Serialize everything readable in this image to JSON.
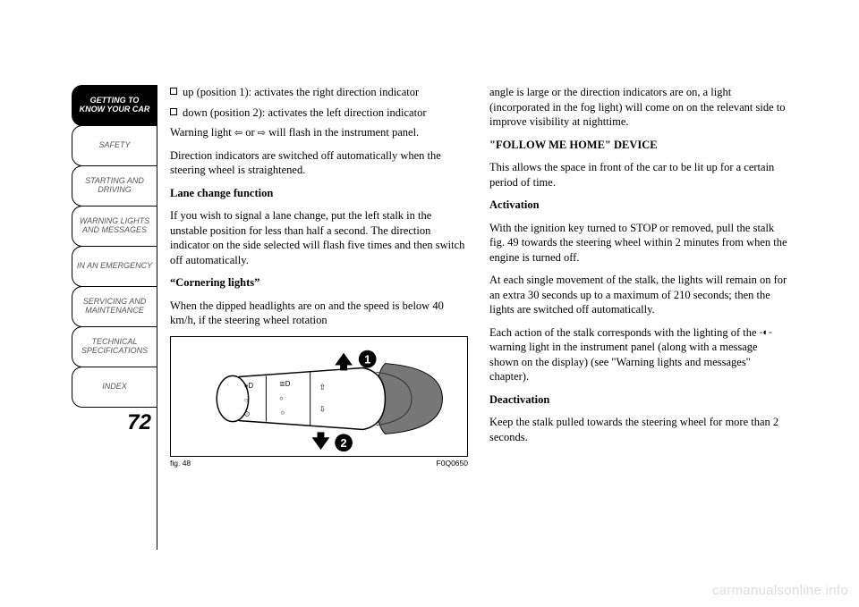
{
  "sidebar": {
    "tabs": [
      {
        "label": "GETTING TO\nKNOW YOUR CAR",
        "active": true
      },
      {
        "label": "SAFETY",
        "active": false
      },
      {
        "label": "STARTING AND\nDRIVING",
        "active": false
      },
      {
        "label": "WARNING LIGHTS\nAND MESSAGES",
        "active": false
      },
      {
        "label": "IN AN EMERGENCY",
        "active": false
      },
      {
        "label": "SERVICING AND\nMAINTENANCE",
        "active": false
      },
      {
        "label": "TECHNICAL\nSPECIFICATIONS",
        "active": false
      },
      {
        "label": "INDEX",
        "active": false
      }
    ]
  },
  "page_number": "72",
  "col1": {
    "bullet1": "up (position 1): activates the right direction indicator",
    "bullet2": "down (position 2): activates the left direction indicator",
    "p1a": "Warning light ",
    "p1b": " or ",
    "p1c": " will flash in the instrument panel.",
    "p2": "Direction indicators are switched off automatically when the steering wheel is straightened.",
    "h1": "Lane change function",
    "p3": "If you wish to signal a lane change, put the left stalk in the unstable position for less than half a second. The direction indicator on the side selected will flash five times and then switch off automatically.",
    "h2": "“Cornering lights”",
    "p4": "When the dipped headlights are on and the speed is below 40 km/h, if the steering wheel rotation",
    "fig_label": "fig. 48",
    "fig_code": "F0Q0650"
  },
  "col2": {
    "p1": "angle is large or the direction indicators are on, a light (incorporated in the fog light) will come on on the relevant side to improve visibility at nighttime.",
    "h1": "\"FOLLOW ME HOME\" DEVICE",
    "p2": "This allows the space in front of the car to be lit up for a certain period of time.",
    "h2": "Activation",
    "p3": "With the ignition key turned to STOP or removed, pull the stalk fig. 49 towards the steering wheel within 2 minutes from when the engine is turned off.",
    "p4": "At each single movement of the stalk, the lights will remain on for an extra 30 seconds up to a maximum of 210 seconds; then the lights are switched off automatically.",
    "p5a": "Each action of the stalk corresponds with the lighting of the ",
    "p5b": " warning light in the instrument panel (along with a message shown on the display) (see \"Warning lights and messages\" chapter).",
    "h3": "Deactivation",
    "p6": "Keep the stalk pulled towards the steering wheel for more than 2 seconds."
  },
  "watermark": "carmanualsonline.info",
  "figure": {
    "callout1": "1",
    "callout2": "2",
    "stalk_fill": "#ffffff",
    "stalk_stroke": "#000000",
    "boot_fill": "#777777",
    "arrow_fill": "#000000",
    "callout_bg": "#000000",
    "callout_fg": "#ffffff"
  }
}
